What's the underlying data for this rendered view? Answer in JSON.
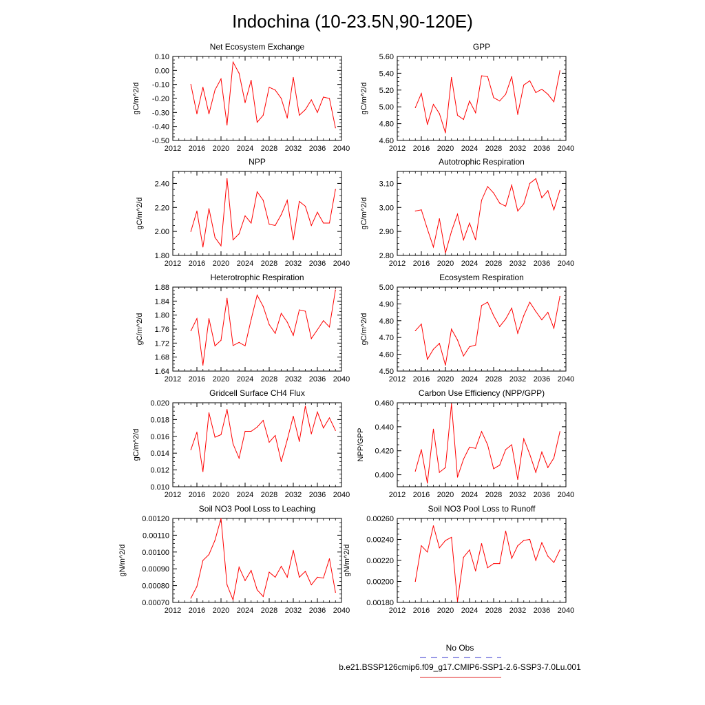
{
  "figure": {
    "title": "Indochina (10-23.5N,90-120E)",
    "legend": [
      {
        "label": "No Obs",
        "color": "#3333cc",
        "dashed": true
      },
      {
        "label": "b.e21.BSSP126cmip6.f09_g17.CMIP6-SSP1-2.6-SSP3-7.0Lu.001",
        "color": "#e02020",
        "dashed": false
      }
    ],
    "series_color": "#ff0000"
  },
  "chart_data": [
    {
      "type": "line",
      "title": "Net Ecosystem Exchange",
      "ylabel": "gC/m^2/d",
      "xlim": [
        2012,
        2040
      ],
      "xticks": [
        "2012",
        "2016",
        "2020",
        "2024",
        "2028",
        "2032",
        "2036",
        "2040"
      ],
      "ylim": [
        -0.5,
        0.1
      ],
      "yticks": [
        "-0.50",
        "-0.40",
        "-0.30",
        "-0.20",
        "-0.10",
        "0.00",
        "0.10"
      ],
      "x": [
        2015,
        2016,
        2017,
        2018,
        2019,
        2020,
        2021,
        2022,
        2023,
        2024,
        2025,
        2026,
        2027,
        2028,
        2029,
        2030,
        2031,
        2032,
        2033,
        2034,
        2035,
        2036,
        2037,
        2038,
        2039
      ],
      "values": [
        -0.1,
        -0.31,
        -0.12,
        -0.31,
        -0.14,
        -0.06,
        -0.39,
        0.06,
        -0.02,
        -0.23,
        -0.07,
        -0.37,
        -0.32,
        -0.12,
        -0.14,
        -0.2,
        -0.34,
        -0.05,
        -0.32,
        -0.28,
        -0.21,
        -0.3,
        -0.19,
        -0.2,
        -0.41
      ]
    },
    {
      "type": "line",
      "title": "GPP",
      "ylabel": "gC/m^2/d",
      "xlim": [
        2012,
        2040
      ],
      "xticks": [
        "2012",
        "2016",
        "2020",
        "2024",
        "2028",
        "2032",
        "2036",
        "2040"
      ],
      "ylim": [
        4.6,
        5.6
      ],
      "yticks": [
        "4.60",
        "4.80",
        "5.00",
        "5.20",
        "5.40",
        "5.60"
      ],
      "x": [
        2015,
        2016,
        2017,
        2018,
        2019,
        2020,
        2021,
        2022,
        2023,
        2024,
        2025,
        2026,
        2027,
        2028,
        2029,
        2030,
        2031,
        2032,
        2033,
        2034,
        2035,
        2036,
        2037,
        2038,
        2039
      ],
      "values": [
        4.99,
        5.16,
        4.79,
        5.03,
        4.92,
        4.69,
        5.35,
        4.9,
        4.85,
        5.07,
        4.93,
        5.37,
        5.36,
        5.11,
        5.07,
        5.15,
        5.36,
        4.91,
        5.26,
        5.31,
        5.17,
        5.21,
        5.15,
        5.06,
        5.43
      ]
    },
    {
      "type": "line",
      "title": "NPP",
      "ylabel": "gC/m^2/d",
      "xlim": [
        2012,
        2040
      ],
      "xticks": [
        "2012",
        "2016",
        "2020",
        "2024",
        "2028",
        "2032",
        "2036",
        "2040"
      ],
      "ylim": [
        1.8,
        2.5
      ],
      "yticks": [
        "1.80",
        "2.00",
        "2.20",
        "2.40"
      ],
      "x": [
        2015,
        2016,
        2017,
        2018,
        2019,
        2020,
        2021,
        2022,
        2023,
        2024,
        2025,
        2026,
        2027,
        2028,
        2029,
        2030,
        2031,
        2032,
        2033,
        2034,
        2035,
        2036,
        2037,
        2038,
        2039
      ],
      "values": [
        2.0,
        2.17,
        1.87,
        2.19,
        1.95,
        1.88,
        2.44,
        1.93,
        1.98,
        2.13,
        2.07,
        2.33,
        2.26,
        2.06,
        2.05,
        2.14,
        2.26,
        1.93,
        2.25,
        2.21,
        2.05,
        2.16,
        2.07,
        2.07,
        2.35
      ]
    },
    {
      "type": "line",
      "title": "Autotrophic Respiration",
      "ylabel": "gC/m^2/d",
      "xlim": [
        2012,
        2040
      ],
      "xticks": [
        "2012",
        "2016",
        "2020",
        "2024",
        "2028",
        "2032",
        "2036",
        "2040"
      ],
      "ylim": [
        2.8,
        3.15
      ],
      "yticks": [
        "2.80",
        "2.90",
        "3.00",
        "3.10"
      ],
      "x": [
        2015,
        2016,
        2017,
        2018,
        2019,
        2020,
        2021,
        2022,
        2023,
        2024,
        2025,
        2026,
        2027,
        2028,
        2029,
        2030,
        2031,
        2032,
        2033,
        2034,
        2035,
        2036,
        2037,
        2038,
        2039
      ],
      "values": [
        2.985,
        2.99,
        2.91,
        2.835,
        2.953,
        2.81,
        2.9,
        2.972,
        2.865,
        2.935,
        2.865,
        3.03,
        3.087,
        3.06,
        3.018,
        3.005,
        3.093,
        2.985,
        3.015,
        3.1,
        3.12,
        3.04,
        3.07,
        2.99,
        3.072
      ]
    },
    {
      "type": "line",
      "title": "Heterotrophic Respiration",
      "ylabel": "gC/m^2/d",
      "xlim": [
        2012,
        2040
      ],
      "xticks": [
        "2012",
        "2016",
        "2020",
        "2024",
        "2028",
        "2032",
        "2036",
        "2040"
      ],
      "ylim": [
        1.64,
        1.88
      ],
      "yticks": [
        "1.64",
        "1.68",
        "1.72",
        "1.76",
        "1.80",
        "1.84",
        "1.88"
      ],
      "x": [
        2015,
        2016,
        2017,
        2018,
        2019,
        2020,
        2021,
        2022,
        2023,
        2024,
        2025,
        2026,
        2027,
        2028,
        2029,
        2030,
        2031,
        2032,
        2033,
        2034,
        2035,
        2036,
        2037,
        2038,
        2039
      ],
      "values": [
        1.755,
        1.79,
        1.657,
        1.79,
        1.712,
        1.728,
        1.848,
        1.713,
        1.722,
        1.712,
        1.787,
        1.857,
        1.825,
        1.773,
        1.748,
        1.805,
        1.78,
        1.742,
        1.815,
        1.811,
        1.733,
        1.758,
        1.784,
        1.766,
        1.872
      ]
    },
    {
      "type": "line",
      "title": "Ecosystem Respiration",
      "ylabel": "gC/m^2/d",
      "xlim": [
        2012,
        2040
      ],
      "xticks": [
        "2012",
        "2016",
        "2020",
        "2024",
        "2028",
        "2032",
        "2036",
        "2040"
      ],
      "ylim": [
        4.5,
        5.0
      ],
      "yticks": [
        "4.50",
        "4.60",
        "4.70",
        "4.80",
        "4.90",
        "5.00"
      ],
      "x": [
        2015,
        2016,
        2017,
        2018,
        2019,
        2020,
        2021,
        2022,
        2023,
        2024,
        2025,
        2026,
        2027,
        2028,
        2029,
        2030,
        2031,
        2032,
        2033,
        2034,
        2035,
        2036,
        2037,
        2038,
        2039
      ],
      "values": [
        4.74,
        4.78,
        4.57,
        4.63,
        4.665,
        4.535,
        4.75,
        4.685,
        4.59,
        4.645,
        4.655,
        4.89,
        4.91,
        4.83,
        4.765,
        4.81,
        4.875,
        4.725,
        4.83,
        4.91,
        4.855,
        4.805,
        4.85,
        4.755,
        4.945
      ]
    },
    {
      "type": "line",
      "title": "Gridcell Surface CH4 Flux",
      "ylabel": "gC/m^2/d",
      "xlim": [
        2012,
        2040
      ],
      "xticks": [
        "2012",
        "2016",
        "2020",
        "2024",
        "2028",
        "2032",
        "2036",
        "2040"
      ],
      "ylim": [
        0.01,
        0.02
      ],
      "yticks": [
        "0.010",
        "0.012",
        "0.014",
        "0.016",
        "0.018",
        "0.020"
      ],
      "x": [
        2015,
        2016,
        2017,
        2018,
        2019,
        2020,
        2021,
        2022,
        2023,
        2024,
        2025,
        2026,
        2027,
        2028,
        2029,
        2030,
        2031,
        2032,
        2033,
        2034,
        2035,
        2036,
        2037,
        2038,
        2039
      ],
      "values": [
        0.0144,
        0.0165,
        0.0118,
        0.0188,
        0.0159,
        0.0162,
        0.0192,
        0.0151,
        0.0134,
        0.0166,
        0.0166,
        0.0171,
        0.0179,
        0.0153,
        0.0161,
        0.013,
        0.0156,
        0.0184,
        0.0154,
        0.0196,
        0.0163,
        0.0189,
        0.017,
        0.0182,
        0.0167
      ]
    },
    {
      "type": "line",
      "title": "Carbon Use Efficiency (NPP/GPP)",
      "ylabel": "NPP/GPP",
      "xlim": [
        2012,
        2040
      ],
      "xticks": [
        "2012",
        "2016",
        "2020",
        "2024",
        "2028",
        "2032",
        "2036",
        "2040"
      ],
      "ylim": [
        0.39,
        0.46
      ],
      "yticks": [
        "0.400",
        "0.420",
        "0.440",
        "0.460"
      ],
      "x": [
        2015,
        2016,
        2017,
        2018,
        2019,
        2020,
        2021,
        2022,
        2023,
        2024,
        2025,
        2026,
        2027,
        2028,
        2029,
        2030,
        2031,
        2032,
        2033,
        2034,
        2035,
        2036,
        2037,
        2038,
        2039
      ],
      "values": [
        0.403,
        0.421,
        0.393,
        0.438,
        0.402,
        0.406,
        0.459,
        0.398,
        0.413,
        0.423,
        0.422,
        0.436,
        0.425,
        0.405,
        0.408,
        0.421,
        0.425,
        0.396,
        0.43,
        0.417,
        0.402,
        0.419,
        0.406,
        0.414,
        0.436
      ]
    },
    {
      "type": "line",
      "title": "Soil NO3 Pool Loss to Leaching",
      "ylabel": "gN/m^2/d",
      "xlim": [
        2012,
        2040
      ],
      "xticks": [
        "2012",
        "2016",
        "2020",
        "2024",
        "2028",
        "2032",
        "2036",
        "2040"
      ],
      "ylim": [
        0.0007,
        0.0012
      ],
      "yticks": [
        "0.00070",
        "0.00080",
        "0.00090",
        "0.00100",
        "0.00110",
        "0.00120"
      ],
      "x": [
        2015,
        2016,
        2017,
        2018,
        2019,
        2020,
        2021,
        2022,
        2023,
        2024,
        2025,
        2026,
        2027,
        2028,
        2029,
        2030,
        2031,
        2032,
        2033,
        2034,
        2035,
        2036,
        2037,
        2038,
        2039
      ],
      "values": [
        0.000725,
        0.000795,
        0.00095,
        0.000985,
        0.00107,
        0.0012,
        0.000805,
        0.000715,
        0.00091,
        0.00083,
        0.00089,
        0.000775,
        0.000735,
        0.00088,
        0.00085,
        0.000915,
        0.00085,
        0.00101,
        0.00085,
        0.000885,
        0.000805,
        0.00085,
        0.000845,
        0.00096,
        0.00076
      ]
    },
    {
      "type": "line",
      "title": "Soil NO3 Pool Loss to Runoff",
      "ylabel": "gN/m^2/d",
      "xlim": [
        2012,
        2040
      ],
      "xticks": [
        "2012",
        "2016",
        "2020",
        "2024",
        "2028",
        "2032",
        "2036",
        "2040"
      ],
      "ylim": [
        0.0018,
        0.0026
      ],
      "yticks": [
        "0.00180",
        "0.00200",
        "0.00220",
        "0.00240",
        "0.00260"
      ],
      "x": [
        2015,
        2016,
        2017,
        2018,
        2019,
        2020,
        2021,
        2022,
        2023,
        2024,
        2025,
        2026,
        2027,
        2028,
        2029,
        2030,
        2031,
        2032,
        2033,
        2034,
        2035,
        2036,
        2037,
        2038,
        2039
      ],
      "values": [
        0.002,
        0.00234,
        0.00228,
        0.00253,
        0.00232,
        0.00239,
        0.00242,
        0.00181,
        0.00223,
        0.0023,
        0.0021,
        0.00236,
        0.00213,
        0.00217,
        0.00217,
        0.00248,
        0.00222,
        0.00234,
        0.00239,
        0.0024,
        0.0022,
        0.00237,
        0.00224,
        0.00218,
        0.0023
      ]
    }
  ]
}
